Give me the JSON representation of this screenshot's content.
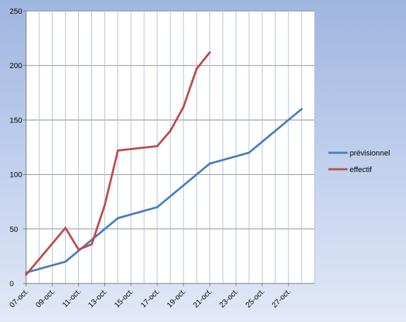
{
  "chart_data": {
    "type": "line",
    "title": "",
    "xlabel": "",
    "ylabel": "",
    "ylim": [
      0,
      250
    ],
    "yticks": [
      0,
      50,
      100,
      150,
      200,
      250
    ],
    "xlim": [
      "2020-10-07",
      "2020-10-29"
    ],
    "xticks": [
      "07-oct.",
      "09-oct.",
      "11-oct.",
      "13-oct.",
      "15-oct.",
      "17-oct.",
      "19-oct.",
      "21-oct.",
      "23-oct.",
      "25-oct.",
      "27-oct."
    ],
    "grid": true,
    "legend_position": "right",
    "series": [
      {
        "name": "prévisionnel",
        "color": "#4a7ebb",
        "points": [
          {
            "x": "2020-10-07",
            "y": 10
          },
          {
            "x": "2020-10-10",
            "y": 20
          },
          {
            "x": "2020-10-14",
            "y": 60
          },
          {
            "x": "2020-10-17",
            "y": 70
          },
          {
            "x": "2020-10-21",
            "y": 110
          },
          {
            "x": "2020-10-24",
            "y": 120
          },
          {
            "x": "2020-10-28",
            "y": 160
          }
        ]
      },
      {
        "name": "effectif",
        "color": "#be4b48",
        "points": [
          {
            "x": "2020-10-07",
            "y": 8
          },
          {
            "x": "2020-10-10",
            "y": 51
          },
          {
            "x": "2020-10-11",
            "y": 31
          },
          {
            "x": "2020-10-12",
            "y": 36
          },
          {
            "x": "2020-10-13",
            "y": 72
          },
          {
            "x": "2020-10-14",
            "y": 122
          },
          {
            "x": "2020-10-17",
            "y": 126
          },
          {
            "x": "2020-10-18",
            "y": 140
          },
          {
            "x": "2020-10-19",
            "y": 162
          },
          {
            "x": "2020-10-20",
            "y": 197
          },
          {
            "x": "2020-10-21",
            "y": 212
          }
        ]
      }
    ]
  }
}
